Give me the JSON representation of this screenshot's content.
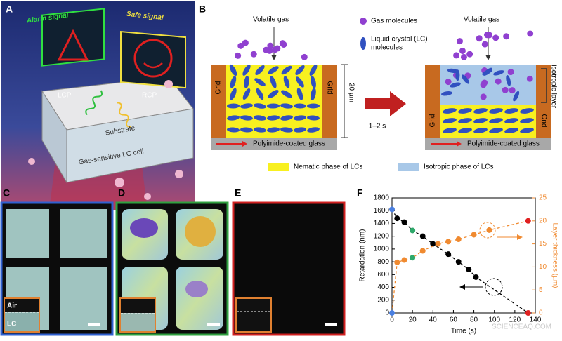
{
  "figure": {
    "panel_labels": [
      "A",
      "B",
      "C",
      "D",
      "E",
      "F"
    ],
    "a": {
      "alarm": "Alarm signal",
      "safe": "Safe signal",
      "lcp": "LCP",
      "rcp": "RCP",
      "substrate": "Substrate",
      "cell": "Gas-sensitive LC cell"
    },
    "b": {
      "volatile_gas": [
        "Volatile gas",
        "Volatile gas"
      ],
      "gas_molecules": "Gas molecules",
      "lc_molecules": [
        "Liquid crystal (LC)",
        "molecules"
      ],
      "thickness": "20 µm",
      "grid": [
        "Grid",
        "Grid",
        "Grid",
        "Grid"
      ],
      "time": "1–2 s",
      "glass": [
        "Polyimide-coated glass",
        "Polyimide-coated glass"
      ],
      "isotropic_layer": "Isotropic layer",
      "nematic": "Nematic phase of LCs",
      "isotropic": "Isotropic phase of LCs"
    },
    "c": {
      "air": "Air",
      "lc": "LC"
    },
    "watermark": "SCIENCEAQ.COM"
  },
  "chart_data": {
    "type": "line",
    "xlabel": "Time (s)",
    "ylabel": "Retardation (nm)",
    "y2label": "Layer thickness (µm)",
    "xlim": [
      0,
      140
    ],
    "xticks": [
      0,
      20,
      40,
      60,
      80,
      100,
      120,
      140
    ],
    "ylim": [
      0,
      1800
    ],
    "yticks": [
      0,
      200,
      400,
      600,
      800,
      1000,
      1200,
      1400,
      1600,
      1800
    ],
    "y2lim": [
      0,
      25
    ],
    "y2ticks": [
      0,
      5,
      10,
      15,
      20,
      25
    ],
    "series": [
      {
        "color": "#000000",
        "x": [
          0,
          5,
          12,
          20,
          30,
          40,
          55,
          65,
          75,
          82,
          133
        ],
        "values": [
          1620,
          1480,
          1420,
          1290,
          1200,
          1080,
          920,
          800,
          680,
          560,
          0
        ],
        "point_colors": [
          "#4a7fe0",
          "#000000",
          "#000000",
          "#2ea86a",
          "#000000",
          "#000000",
          "#000000",
          "#000000",
          "#000000",
          "#000000",
          "#e02020"
        ]
      },
      {
        "color": "#f08a30",
        "axis": "y2",
        "x": [
          0,
          5,
          12,
          20,
          30,
          45,
          55,
          65,
          80,
          95,
          133
        ],
        "values": [
          0,
          11,
          11.5,
          12,
          13.5,
          15,
          15.5,
          16,
          17,
          18,
          20
        ],
        "point_colors": [
          "#4a7fe0",
          "#f08a30",
          "#f08a30",
          "#2ea86a",
          "#f08a30",
          "#f08a30",
          "#f08a30",
          "#f08a30",
          "#f08a30",
          "#f08a30",
          "#e02020"
        ]
      }
    ]
  }
}
